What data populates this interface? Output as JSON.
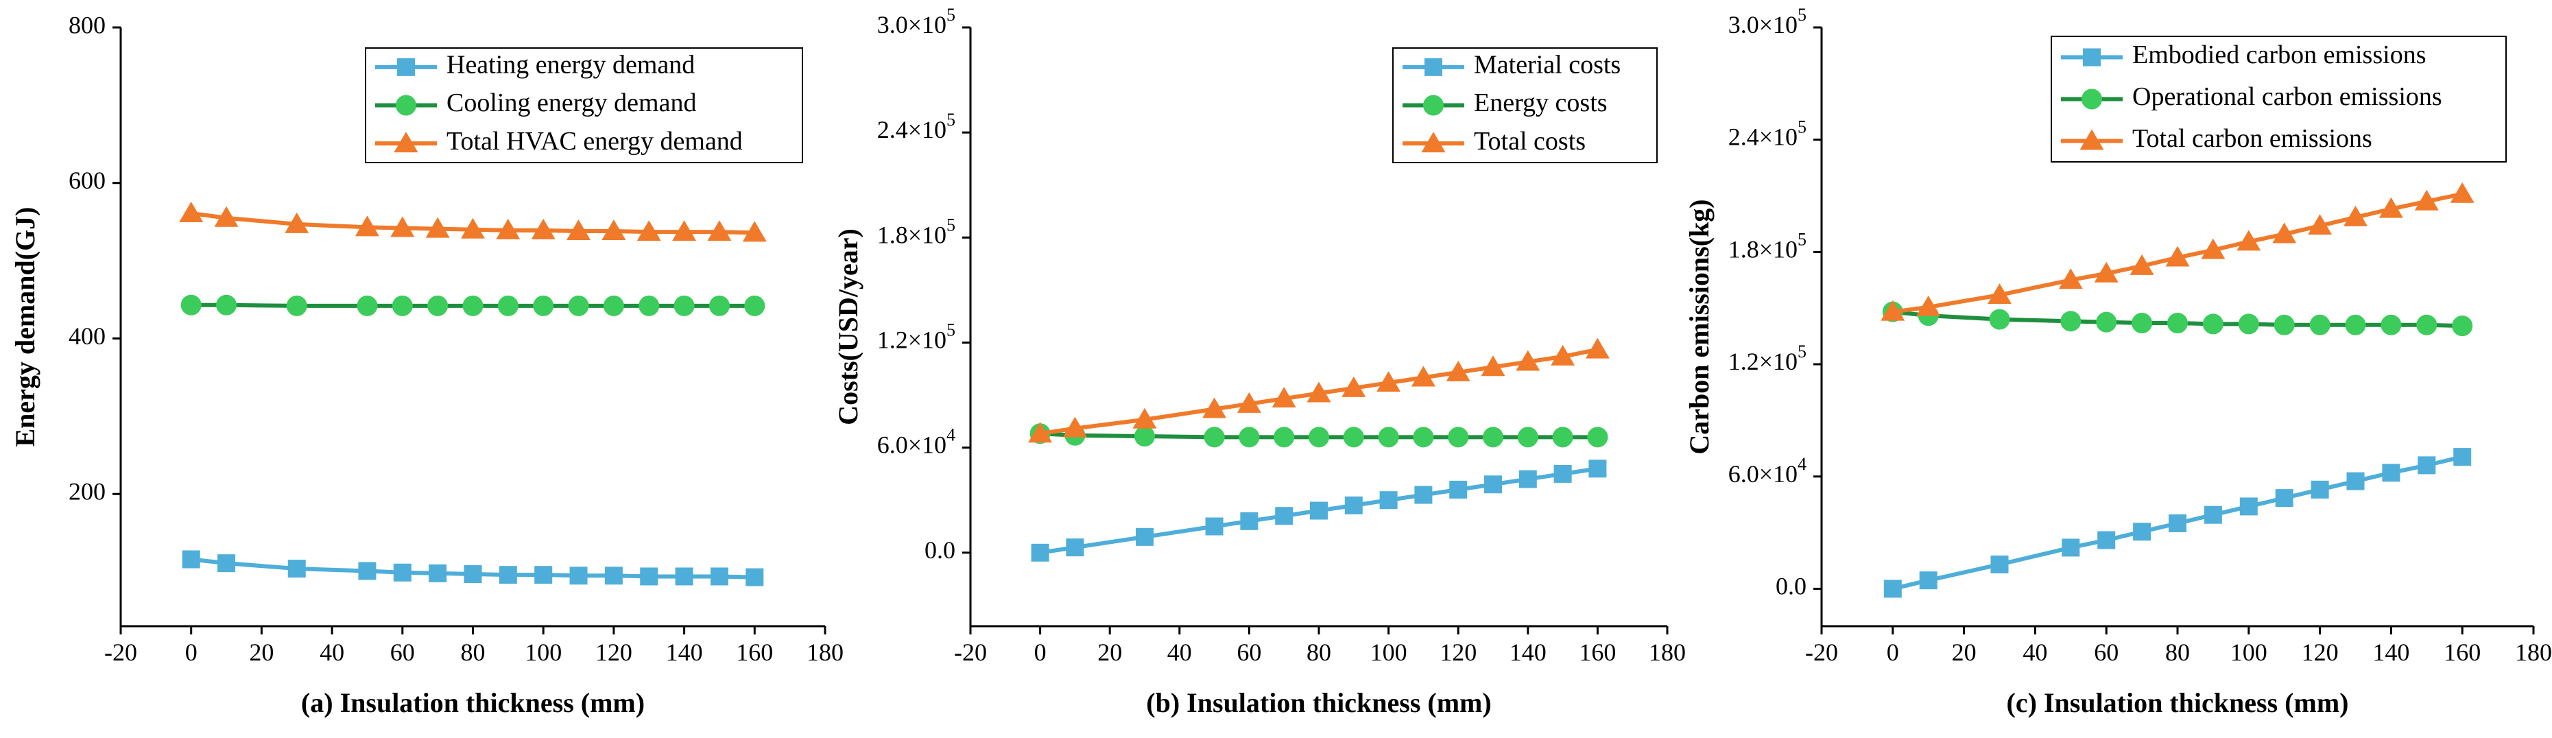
{
  "colors": {
    "heating": "#4eaed9",
    "cooling": "#1f8f3f",
    "total": "#f07a2a",
    "marker_cooling": "#3ccc5c",
    "material": "#4eaed9",
    "energy": "#1f8f3f",
    "embodied": "#4eaed9",
    "operational": "#1f8f3f"
  },
  "chart_data": [
    {
      "type": "line",
      "id": "a",
      "title": "",
      "xlabel": "(a) Insulation thickness (mm)",
      "ylabel": "Energy demand(GJ)",
      "xlim": [
        -20,
        180
      ],
      "ylim": [
        30,
        800
      ],
      "xticks": [
        -20,
        0,
        20,
        40,
        60,
        80,
        100,
        120,
        140,
        160,
        180
      ],
      "xtick_labels": [
        "-20",
        "0",
        "20",
        "40",
        "60",
        "80",
        "100",
        "120",
        "140",
        "160",
        "180"
      ],
      "yticks": [
        200,
        400,
        600,
        800
      ],
      "ytick_labels": [
        "200",
        "400",
        "600",
        "800"
      ],
      "x": [
        0,
        10,
        30,
        50,
        60,
        70,
        80,
        90,
        100,
        110,
        120,
        130,
        140,
        150,
        160
      ],
      "series": [
        {
          "name": "Heating energy demand",
          "marker": "square",
          "color_key": "heating",
          "values": [
            116,
            111,
            104,
            101,
            99,
            98,
            97,
            96,
            96,
            95,
            95,
            94,
            94,
            94,
            93
          ]
        },
        {
          "name": "Cooling energy demand",
          "marker": "circle",
          "color_key": "cooling",
          "values": [
            443,
            443,
            442,
            442,
            442,
            442,
            442,
            442,
            442,
            442,
            442,
            442,
            442,
            442,
            442
          ]
        },
        {
          "name": "Total HVAC energy demand",
          "marker": "triangle",
          "color_key": "total",
          "values": [
            561,
            555,
            547,
            543,
            542,
            541,
            540,
            539,
            539,
            538,
            538,
            537,
            537,
            537,
            536
          ]
        }
      ]
    },
    {
      "type": "line",
      "id": "b",
      "title": "",
      "xlabel": "(b) Insulation thickness (mm)",
      "ylabel": "Costs(USD/year)",
      "xlim": [
        -20,
        180
      ],
      "ylim": [
        -42000,
        300000
      ],
      "xticks": [
        -20,
        0,
        20,
        40,
        60,
        80,
        100,
        120,
        140,
        160,
        180
      ],
      "xtick_labels": [
        "-20",
        "0",
        "20",
        "40",
        "60",
        "80",
        "100",
        "120",
        "140",
        "160",
        "180"
      ],
      "yticks": [
        0,
        60000,
        120000,
        180000,
        240000,
        300000
      ],
      "ytick_labels": [
        {
          "mant": "0.0",
          "exp": ""
        },
        {
          "mant": "6.0×10",
          "exp": "4"
        },
        {
          "mant": "1.2×10",
          "exp": "5"
        },
        {
          "mant": "1.8×10",
          "exp": "5"
        },
        {
          "mant": "2.4×10",
          "exp": "5"
        },
        {
          "mant": "3.0×10",
          "exp": "5"
        }
      ],
      "x": [
        0,
        10,
        30,
        50,
        60,
        70,
        80,
        90,
        100,
        110,
        120,
        130,
        140,
        150,
        160
      ],
      "series": [
        {
          "name": "Material costs",
          "marker": "square",
          "color_key": "material",
          "values": [
            0,
            3000,
            9000,
            15000,
            18000,
            21000,
            24000,
            27000,
            30000,
            33000,
            36000,
            39000,
            42000,
            45000,
            48000
          ]
        },
        {
          "name": "Energy costs",
          "marker": "circle",
          "color_key": "energy",
          "values": [
            68000,
            67000,
            66500,
            66000,
            66000,
            66000,
            66000,
            66000,
            66000,
            66000,
            66000,
            66000,
            66000,
            66000,
            66000
          ]
        },
        {
          "name": "Total costs",
          "marker": "triangle",
          "color_key": "total",
          "values": [
            68000,
            71000,
            76000,
            82000,
            85000,
            88000,
            91000,
            94000,
            97000,
            100000,
            103000,
            106000,
            109000,
            112000,
            116000
          ]
        }
      ]
    },
    {
      "type": "line",
      "id": "c",
      "title": "",
      "xlabel": "(c) Insulation thickness (mm)",
      "ylabel": "Carbon emissions(kg)",
      "xlim": [
        -20,
        180
      ],
      "ylim": [
        -20000,
        300000
      ],
      "xticks": [
        -20,
        0,
        20,
        40,
        60,
        80,
        100,
        120,
        140,
        160,
        180
      ],
      "xtick_labels": [
        "-20",
        "0",
        "20",
        "40",
        "60",
        "80",
        "100",
        "120",
        "140",
        "160",
        "180"
      ],
      "yticks": [
        0,
        60000,
        120000,
        180000,
        240000,
        300000
      ],
      "ytick_labels": [
        {
          "mant": "0.0",
          "exp": ""
        },
        {
          "mant": "6.0×10",
          "exp": "4"
        },
        {
          "mant": "1.2×10",
          "exp": "5"
        },
        {
          "mant": "1.8×10",
          "exp": "5"
        },
        {
          "mant": "2.4×10",
          "exp": "5"
        },
        {
          "mant": "3.0×10",
          "exp": "5"
        }
      ],
      "x": [
        0,
        10,
        30,
        50,
        60,
        70,
        80,
        90,
        100,
        110,
        120,
        130,
        140,
        150,
        160
      ],
      "series": [
        {
          "name": "Embodied carbon emissions",
          "marker": "square",
          "color_key": "embodied",
          "values": [
            0,
            4500,
            13000,
            22000,
            26000,
            30500,
            35000,
            39500,
            44000,
            48500,
            53000,
            57500,
            62000,
            66000,
            70500
          ]
        },
        {
          "name": "Operational carbon emissions",
          "marker": "circle",
          "color_key": "operational",
          "values": [
            148000,
            146000,
            144000,
            143000,
            142500,
            142000,
            142000,
            141500,
            141500,
            141000,
            141000,
            141000,
            141000,
            141000,
            140500
          ]
        },
        {
          "name": "Total carbon emissions",
          "marker": "triangle",
          "color_key": "total",
          "values": [
            148000,
            150500,
            157000,
            165000,
            168500,
            172500,
            177000,
            181000,
            185500,
            189500,
            194000,
            198500,
            203000,
            207000,
            211000
          ]
        }
      ]
    }
  ]
}
